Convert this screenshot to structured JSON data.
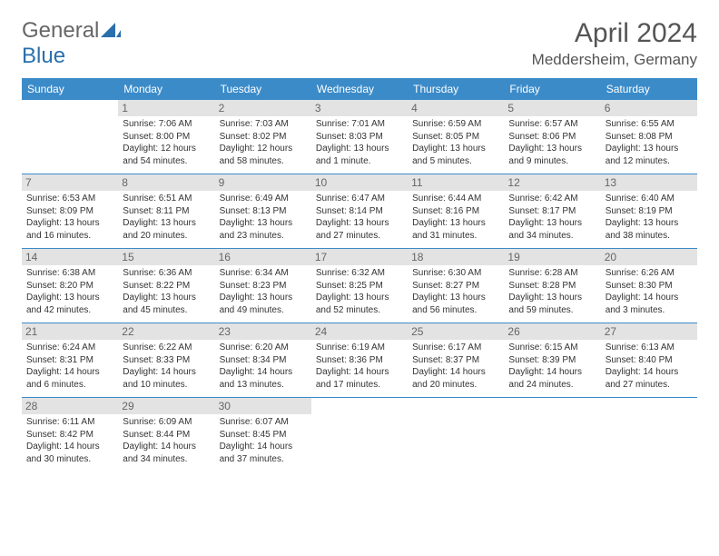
{
  "logo": {
    "text1": "General",
    "text2": "Blue"
  },
  "title": "April 2024",
  "location": "Meddersheim, Germany",
  "colors": {
    "header_bg": "#3b8bc9",
    "header_text": "#ffffff",
    "daynum_bg": "#e3e3e3",
    "divider": "#3b8bc9",
    "logo_gray": "#666666",
    "logo_blue": "#2a6fad"
  },
  "weekdays": [
    "Sunday",
    "Monday",
    "Tuesday",
    "Wednesday",
    "Thursday",
    "Friday",
    "Saturday"
  ],
  "weeks": [
    [
      null,
      {
        "n": "1",
        "sr": "Sunrise: 7:06 AM",
        "ss": "Sunset: 8:00 PM",
        "d1": "Daylight: 12 hours",
        "d2": "and 54 minutes."
      },
      {
        "n": "2",
        "sr": "Sunrise: 7:03 AM",
        "ss": "Sunset: 8:02 PM",
        "d1": "Daylight: 12 hours",
        "d2": "and 58 minutes."
      },
      {
        "n": "3",
        "sr": "Sunrise: 7:01 AM",
        "ss": "Sunset: 8:03 PM",
        "d1": "Daylight: 13 hours",
        "d2": "and 1 minute."
      },
      {
        "n": "4",
        "sr": "Sunrise: 6:59 AM",
        "ss": "Sunset: 8:05 PM",
        "d1": "Daylight: 13 hours",
        "d2": "and 5 minutes."
      },
      {
        "n": "5",
        "sr": "Sunrise: 6:57 AM",
        "ss": "Sunset: 8:06 PM",
        "d1": "Daylight: 13 hours",
        "d2": "and 9 minutes."
      },
      {
        "n": "6",
        "sr": "Sunrise: 6:55 AM",
        "ss": "Sunset: 8:08 PM",
        "d1": "Daylight: 13 hours",
        "d2": "and 12 minutes."
      }
    ],
    [
      {
        "n": "7",
        "sr": "Sunrise: 6:53 AM",
        "ss": "Sunset: 8:09 PM",
        "d1": "Daylight: 13 hours",
        "d2": "and 16 minutes."
      },
      {
        "n": "8",
        "sr": "Sunrise: 6:51 AM",
        "ss": "Sunset: 8:11 PM",
        "d1": "Daylight: 13 hours",
        "d2": "and 20 minutes."
      },
      {
        "n": "9",
        "sr": "Sunrise: 6:49 AM",
        "ss": "Sunset: 8:13 PM",
        "d1": "Daylight: 13 hours",
        "d2": "and 23 minutes."
      },
      {
        "n": "10",
        "sr": "Sunrise: 6:47 AM",
        "ss": "Sunset: 8:14 PM",
        "d1": "Daylight: 13 hours",
        "d2": "and 27 minutes."
      },
      {
        "n": "11",
        "sr": "Sunrise: 6:44 AM",
        "ss": "Sunset: 8:16 PM",
        "d1": "Daylight: 13 hours",
        "d2": "and 31 minutes."
      },
      {
        "n": "12",
        "sr": "Sunrise: 6:42 AM",
        "ss": "Sunset: 8:17 PM",
        "d1": "Daylight: 13 hours",
        "d2": "and 34 minutes."
      },
      {
        "n": "13",
        "sr": "Sunrise: 6:40 AM",
        "ss": "Sunset: 8:19 PM",
        "d1": "Daylight: 13 hours",
        "d2": "and 38 minutes."
      }
    ],
    [
      {
        "n": "14",
        "sr": "Sunrise: 6:38 AM",
        "ss": "Sunset: 8:20 PM",
        "d1": "Daylight: 13 hours",
        "d2": "and 42 minutes."
      },
      {
        "n": "15",
        "sr": "Sunrise: 6:36 AM",
        "ss": "Sunset: 8:22 PM",
        "d1": "Daylight: 13 hours",
        "d2": "and 45 minutes."
      },
      {
        "n": "16",
        "sr": "Sunrise: 6:34 AM",
        "ss": "Sunset: 8:23 PM",
        "d1": "Daylight: 13 hours",
        "d2": "and 49 minutes."
      },
      {
        "n": "17",
        "sr": "Sunrise: 6:32 AM",
        "ss": "Sunset: 8:25 PM",
        "d1": "Daylight: 13 hours",
        "d2": "and 52 minutes."
      },
      {
        "n": "18",
        "sr": "Sunrise: 6:30 AM",
        "ss": "Sunset: 8:27 PM",
        "d1": "Daylight: 13 hours",
        "d2": "and 56 minutes."
      },
      {
        "n": "19",
        "sr": "Sunrise: 6:28 AM",
        "ss": "Sunset: 8:28 PM",
        "d1": "Daylight: 13 hours",
        "d2": "and 59 minutes."
      },
      {
        "n": "20",
        "sr": "Sunrise: 6:26 AM",
        "ss": "Sunset: 8:30 PM",
        "d1": "Daylight: 14 hours",
        "d2": "and 3 minutes."
      }
    ],
    [
      {
        "n": "21",
        "sr": "Sunrise: 6:24 AM",
        "ss": "Sunset: 8:31 PM",
        "d1": "Daylight: 14 hours",
        "d2": "and 6 minutes."
      },
      {
        "n": "22",
        "sr": "Sunrise: 6:22 AM",
        "ss": "Sunset: 8:33 PM",
        "d1": "Daylight: 14 hours",
        "d2": "and 10 minutes."
      },
      {
        "n": "23",
        "sr": "Sunrise: 6:20 AM",
        "ss": "Sunset: 8:34 PM",
        "d1": "Daylight: 14 hours",
        "d2": "and 13 minutes."
      },
      {
        "n": "24",
        "sr": "Sunrise: 6:19 AM",
        "ss": "Sunset: 8:36 PM",
        "d1": "Daylight: 14 hours",
        "d2": "and 17 minutes."
      },
      {
        "n": "25",
        "sr": "Sunrise: 6:17 AM",
        "ss": "Sunset: 8:37 PM",
        "d1": "Daylight: 14 hours",
        "d2": "and 20 minutes."
      },
      {
        "n": "26",
        "sr": "Sunrise: 6:15 AM",
        "ss": "Sunset: 8:39 PM",
        "d1": "Daylight: 14 hours",
        "d2": "and 24 minutes."
      },
      {
        "n": "27",
        "sr": "Sunrise: 6:13 AM",
        "ss": "Sunset: 8:40 PM",
        "d1": "Daylight: 14 hours",
        "d2": "and 27 minutes."
      }
    ],
    [
      {
        "n": "28",
        "sr": "Sunrise: 6:11 AM",
        "ss": "Sunset: 8:42 PM",
        "d1": "Daylight: 14 hours",
        "d2": "and 30 minutes."
      },
      {
        "n": "29",
        "sr": "Sunrise: 6:09 AM",
        "ss": "Sunset: 8:44 PM",
        "d1": "Daylight: 14 hours",
        "d2": "and 34 minutes."
      },
      {
        "n": "30",
        "sr": "Sunrise: 6:07 AM",
        "ss": "Sunset: 8:45 PM",
        "d1": "Daylight: 14 hours",
        "d2": "and 37 minutes."
      },
      null,
      null,
      null,
      null
    ]
  ]
}
